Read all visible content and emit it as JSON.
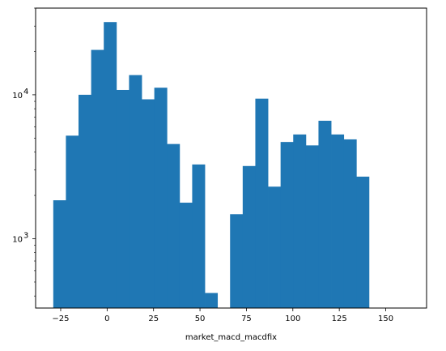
{
  "chart_data": {
    "type": "bar",
    "title": "",
    "xlabel": "market_macd_macdfix",
    "ylabel": "",
    "yscale": "log",
    "xlim": [
      -38.5,
      172
    ],
    "ylim": [
      330,
      40000
    ],
    "grid": false,
    "bar_color": "#1f77b4",
    "bin_width": 6.8,
    "bins_start": -29,
    "values": [
      1850,
      5200,
      10000,
      20500,
      32000,
      10800,
      13700,
      9300,
      11200,
      4550,
      1780,
      3280,
      420,
      0,
      1480,
      3200,
      9400,
      2300,
      4700,
      5300,
      4450,
      6600,
      5300,
      4900,
      2700
    ],
    "x_ticks": [
      -25,
      0,
      25,
      50,
      75,
      100,
      125,
      150
    ],
    "x_tick_labels": [
      "−25",
      "0",
      "25",
      "50",
      "75",
      "100",
      "125",
      "150"
    ],
    "y_ticks": [
      1000,
      10000
    ],
    "y_tick_labels": [
      {
        "base": "10",
        "exp": "3"
      },
      {
        "base": "10",
        "exp": "4"
      }
    ]
  }
}
